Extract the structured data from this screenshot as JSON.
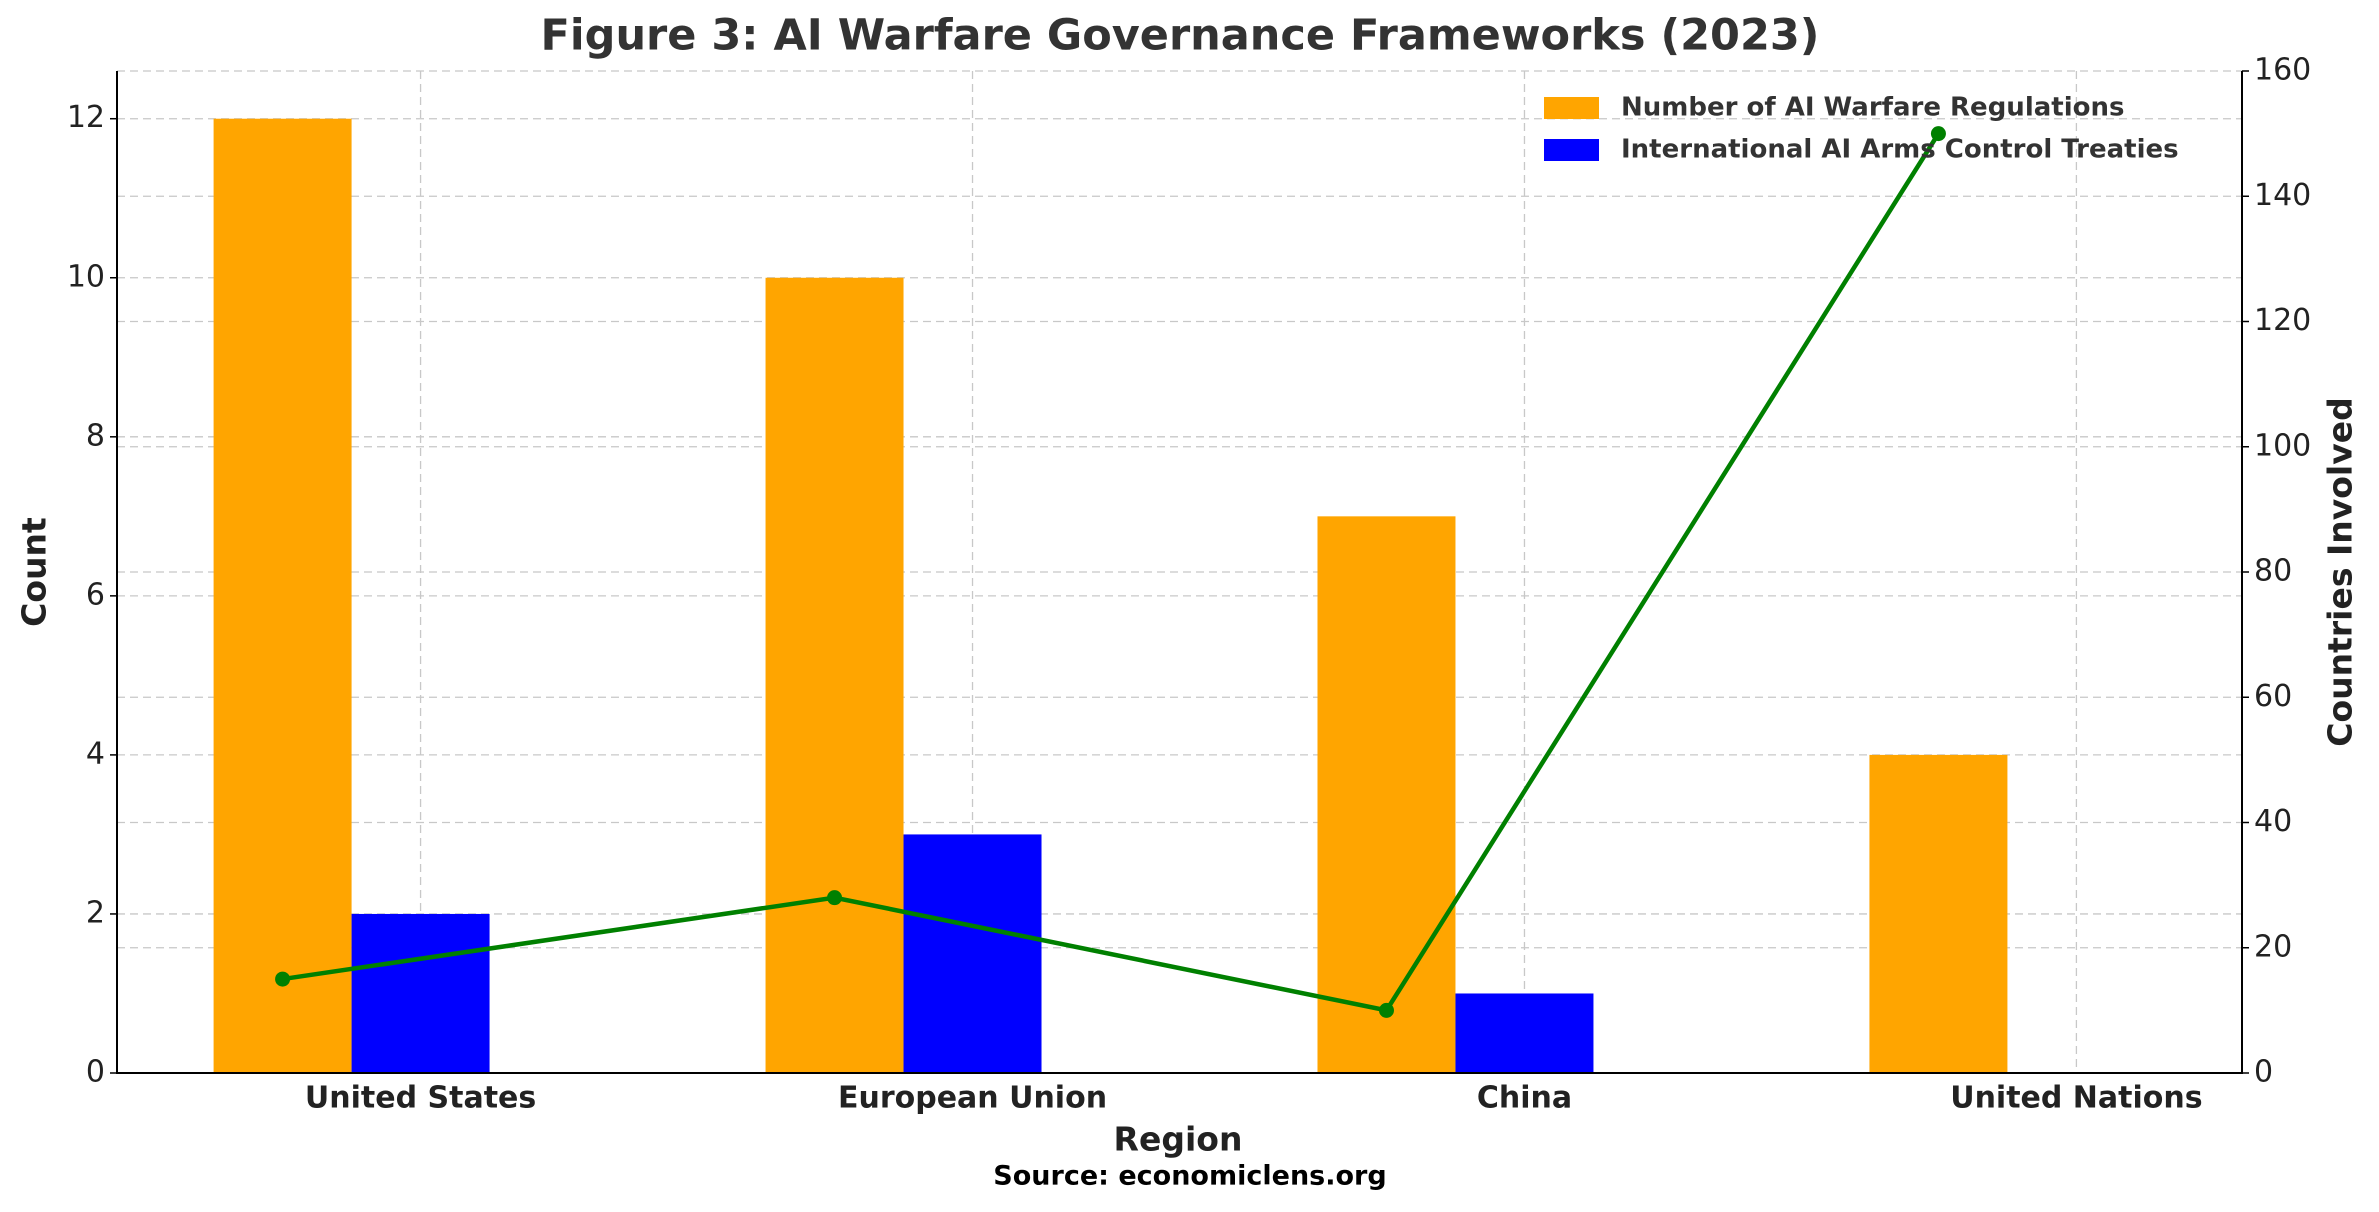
{
  "chart_data": {
    "type": "bar",
    "title": "Figure 3: AI Warfare Governance Frameworks (2023)",
    "x_label": "Region",
    "y_label": "Count",
    "y2_label": "Countries Involved",
    "source": "Source: economiclens.org",
    "categories": [
      "United States",
      "European Union",
      "China",
      "United Nations"
    ],
    "series": [
      {
        "name": "Number of AI Warfare Regulations",
        "color": "#ffa500",
        "type": "bar",
        "values": [
          12,
          10,
          7,
          4
        ]
      },
      {
        "name": "International AI Arms Control Treaties",
        "color": "#0000ff",
        "type": "bar",
        "values": [
          2,
          3,
          1,
          0
        ]
      },
      {
        "color": "#008000",
        "type": "line",
        "axis": "y2",
        "values": [
          15,
          28,
          10,
          150
        ]
      }
    ],
    "ylim": [
      0,
      12.6
    ],
    "yticks": [
      0,
      2,
      4,
      6,
      8,
      10,
      12
    ],
    "y2lim": [
      0,
      160
    ],
    "y2ticks": [
      0,
      20,
      40,
      60,
      80,
      100,
      120,
      140,
      160
    ],
    "grid": true,
    "legend": "upper right"
  }
}
